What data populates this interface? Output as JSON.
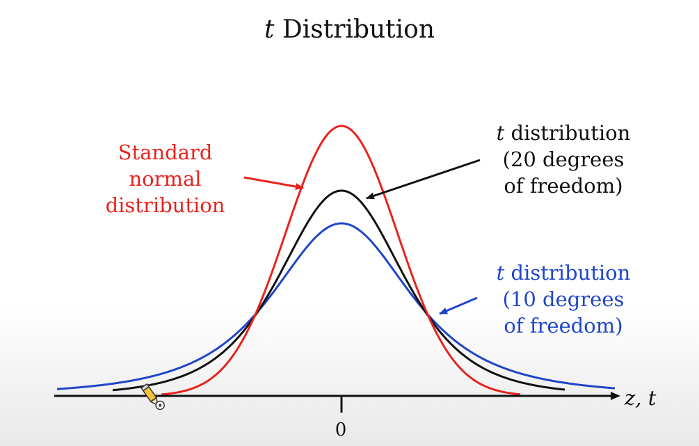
{
  "title": {
    "italic": "t",
    "rest": " Distribution"
  },
  "labels": {
    "normal": [
      "Standard",
      "normal",
      "distribution"
    ],
    "t20": {
      "italic": "t",
      "line1_rest": " distribution",
      "line2": "(20 degrees",
      "line3": "of freedom)"
    },
    "t10": {
      "italic": "t",
      "line1_rest": " distribution",
      "line2": "(10 degrees",
      "line3": "of freedom)"
    }
  },
  "axis": {
    "label": "z, t",
    "tick": "0"
  },
  "colors": {
    "normal": "#e8231e",
    "t20": "#111111",
    "t10": "#1f45c8",
    "axis": "#111111"
  },
  "icons": {
    "cursor": "pencil-cursor-icon"
  }
}
